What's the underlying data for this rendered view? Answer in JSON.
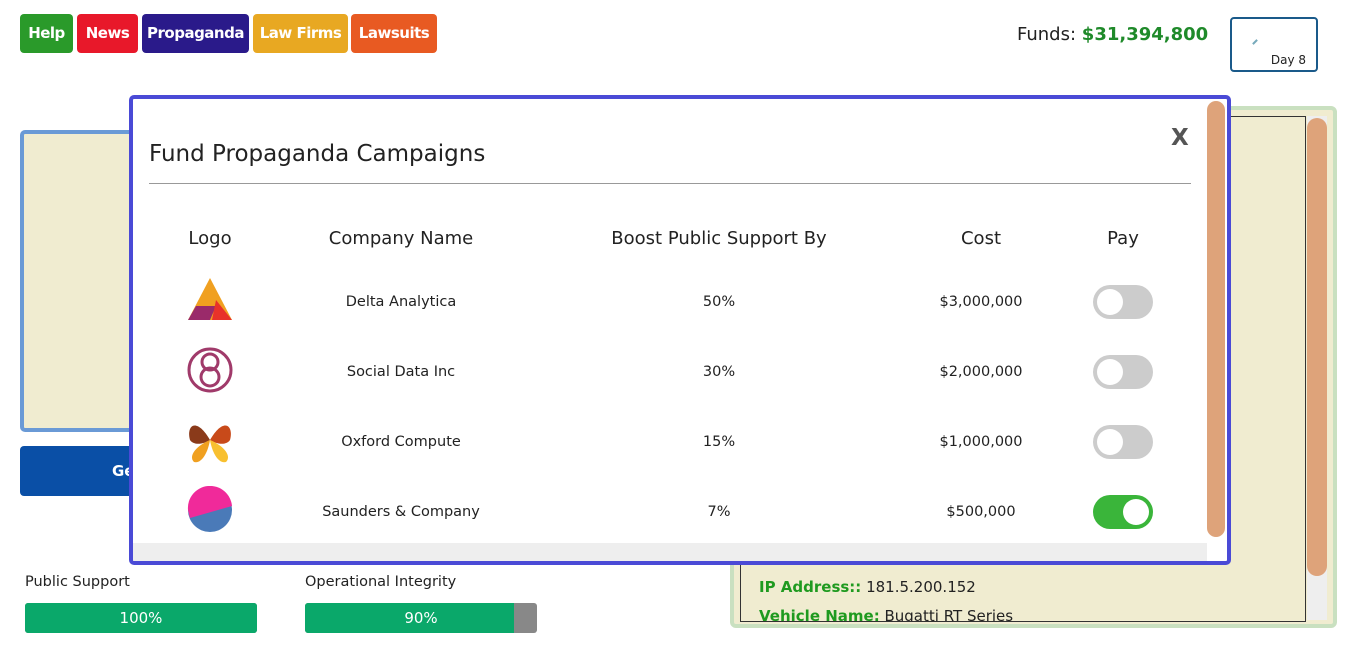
{
  "nav": [
    "Help",
    "News",
    "Propaganda",
    "Law Firms",
    "Lawsuits"
  ],
  "funds": {
    "label": "Funds:",
    "amount": "$31,394,800"
  },
  "day": "Day 8",
  "background": {
    "button": "Ge",
    "meters": [
      {
        "label": "Public Support",
        "value": 100,
        "text": "100%"
      },
      {
        "label": "Operational Integrity",
        "value": 90,
        "text": "90%"
      }
    ],
    "details": [
      {
        "key": "IP Address::",
        "value": "181.5.200.152"
      },
      {
        "key": "Vehicle Name:",
        "value": "Bugatti RT Series"
      }
    ]
  },
  "modal": {
    "title": "Fund Propaganda Campaigns",
    "close": "X",
    "headers": [
      "Logo",
      "Company Name",
      "Boost Public Support By",
      "Cost",
      "Pay"
    ],
    "rows": [
      {
        "company": "Delta Analytica",
        "boost": "50%",
        "cost": "$3,000,000",
        "paid": false
      },
      {
        "company": "Social Data Inc",
        "boost": "30%",
        "cost": "$2,000,000",
        "paid": false
      },
      {
        "company": "Oxford Compute",
        "boost": "15%",
        "cost": "$1,000,000",
        "paid": false
      },
      {
        "company": "Saunders & Company",
        "boost": "7%",
        "cost": "$500,000",
        "paid": true
      }
    ]
  }
}
